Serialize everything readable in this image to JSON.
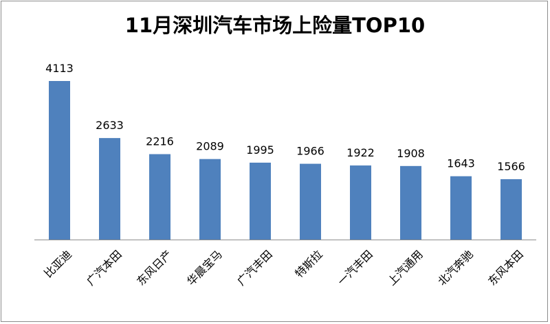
{
  "chart_data": {
    "type": "bar",
    "title": "11月深圳汽车市场上险量TOP10",
    "categories": [
      "比亚迪",
      "广汽本田",
      "东风日产",
      "华晨宝马",
      "广汽丰田",
      "特斯拉",
      "一汽丰田",
      "上汽通用",
      "北汽奔驰",
      "东风本田"
    ],
    "values": [
      4113,
      2633,
      2216,
      2089,
      1995,
      1966,
      1922,
      1908,
      1643,
      1566
    ],
    "value_labels": [
      "4113",
      "2633",
      "2216",
      "2089",
      "1995",
      "1966",
      "1922",
      "1908",
      "1643",
      "1566"
    ],
    "bar_color": "#4f81bd",
    "ylim": [
      0,
      4113
    ],
    "grid": false,
    "legend": false
  }
}
